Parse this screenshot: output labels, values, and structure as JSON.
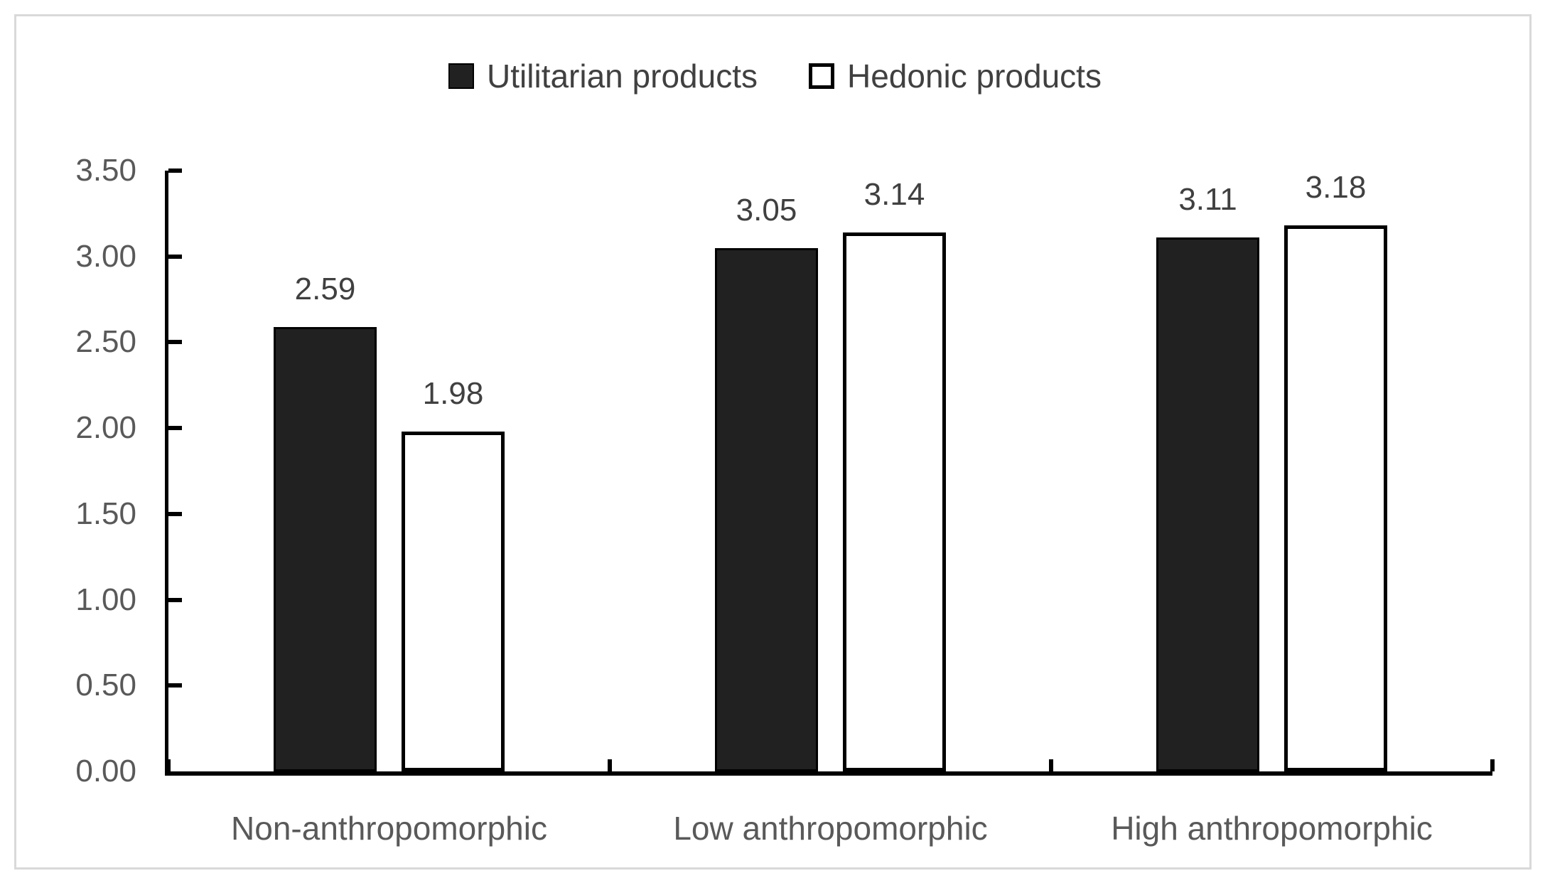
{
  "chart_data": {
    "type": "bar",
    "title": "",
    "categories": [
      "Non-anthropomorphic",
      "Low anthropomorphic",
      "High anthropomorphic"
    ],
    "series": [
      {
        "name": "Utilitarian products",
        "values": [
          2.59,
          3.05,
          3.11
        ],
        "data_labels": [
          "2.59",
          "3.05",
          "3.11"
        ],
        "fill": "#212121",
        "border": "#000000",
        "swatch_style": "filled"
      },
      {
        "name": "Hedonic products",
        "values": [
          1.98,
          3.14,
          3.18
        ],
        "data_labels": [
          "1.98",
          "3.14",
          "3.18"
        ],
        "fill": "#ffffff",
        "border": "#000000",
        "swatch_style": "hollow"
      }
    ],
    "y_axis": {
      "min": 0,
      "max": 3.5,
      "step": 0.5,
      "tick_labels": [
        "0.00",
        "0.50",
        "1.00",
        "1.50",
        "2.00",
        "2.50",
        "3.00",
        "3.50"
      ]
    },
    "x_axis": {
      "boundary_ticks": true
    },
    "legend_position": "top",
    "grid": false,
    "colors": {
      "axis_line": "#000000",
      "axis_text": "#595959",
      "data_label_text": "#404040",
      "legend_text": "#404040",
      "frame_border": "#d9d9d9",
      "background": "#ffffff"
    }
  }
}
